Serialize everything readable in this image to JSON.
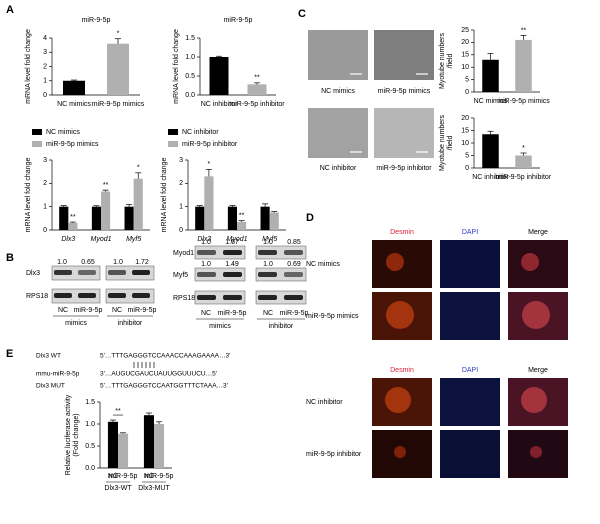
{
  "panels": [
    "A",
    "B",
    "C",
    "D",
    "E"
  ],
  "chart_data": [
    {
      "type": "bar",
      "title": "miR-9-5p",
      "y_label": [
        "mRNA level fold change"
      ],
      "categories": [
        "NC mimics",
        "miR-9-5p mimics"
      ],
      "values": [
        1.0,
        3.6
      ],
      "errors": [
        0.05,
        0.35
      ],
      "colors": [
        "#000000",
        "#b0b0b0"
      ],
      "annotations": [
        null,
        "*"
      ],
      "ylim": [
        0,
        4
      ],
      "yticks": [
        0,
        1,
        2,
        3,
        4
      ]
    },
    {
      "type": "bar",
      "title": "miR-9-5p",
      "y_label": [
        "mRNA level fold change"
      ],
      "categories": [
        "NC inhibitor",
        "miR-9-5p inhibitor"
      ],
      "values": [
        1.0,
        0.28
      ],
      "errors": [
        0.02,
        0.04
      ],
      "colors": [
        "#000000",
        "#b0b0b0"
      ],
      "annotations": [
        null,
        "**"
      ],
      "ylim": [
        0,
        1.5
      ],
      "yticks": [
        {
          "value": 0,
          "label": "0.0"
        },
        0.5,
        {
          "value": 1,
          "label": "1.0"
        },
        1.5
      ]
    },
    {
      "type": "bar",
      "y_label": [
        "mRNA level fold change"
      ],
      "categories": [
        "Dlx3",
        "Myod1",
        "Myf5"
      ],
      "legend": "top",
      "series": [
        {
          "name": "NC mimics",
          "color": "#000000",
          "values": [
            1.0,
            1.0,
            1.0
          ],
          "errors": [
            0.05,
            0.04,
            0.1
          ],
          "annotations": [
            null,
            null,
            null
          ]
        },
        {
          "name": "miR-9-5p mimics",
          "color": "#b0b0b0",
          "values": [
            0.3,
            1.65,
            2.2
          ],
          "errors": [
            0.04,
            0.06,
            0.25
          ],
          "annotations": [
            "**",
            "**",
            "*"
          ]
        }
      ],
      "ylim": [
        0,
        3
      ],
      "yticks": [
        0,
        1,
        2,
        3
      ]
    },
    {
      "type": "bar",
      "y_label": [
        "mRNA level fold change"
      ],
      "categories": [
        "Dlx3",
        "Myod1",
        "Myf5"
      ],
      "legend": "top",
      "series": [
        {
          "name": "NC inhibitor",
          "color": "#000000",
          "values": [
            1.0,
            1.0,
            1.0
          ],
          "errors": [
            0.05,
            0.05,
            0.12
          ],
          "annotations": [
            null,
            null,
            null
          ]
        },
        {
          "name": "miR-9-5p inhibitor",
          "color": "#b0b0b0",
          "values": [
            2.3,
            0.35,
            0.75
          ],
          "errors": [
            0.3,
            0.05,
            0.04
          ],
          "annotations": [
            "*",
            "**",
            null
          ]
        }
      ],
      "ylim": [
        0,
        3
      ],
      "yticks": [
        0,
        1,
        2,
        3
      ]
    },
    {
      "type": "bar",
      "y_label": [
        "Myotube numbers",
        "/field"
      ],
      "categories": [
        "NC mimics",
        "miR-9-5p mimics"
      ],
      "values": [
        13,
        21
      ],
      "errors": [
        2.5,
        1.8
      ],
      "colors": [
        "#000000",
        "#b0b0b0"
      ],
      "annotations": [
        null,
        "**"
      ],
      "ylim": [
        0,
        25
      ],
      "yticks": [
        0,
        5,
        10,
        15,
        20,
        25
      ]
    },
    {
      "type": "bar",
      "y_label": [
        "Myotube numbers",
        "/field"
      ],
      "categories": [
        "NC inhibitor",
        "miR-9-5p inhibitor"
      ],
      "values": [
        13.5,
        5
      ],
      "errors": [
        1.2,
        1.0
      ],
      "colors": [
        "#000000",
        "#b0b0b0"
      ],
      "annotations": [
        null,
        "*"
      ],
      "ylim": [
        0,
        20
      ],
      "yticks": [
        0,
        5,
        10,
        15,
        20
      ]
    },
    {
      "type": "bar",
      "y_label": [
        "Relative luciferase activity",
        "(Fold change)"
      ],
      "categories": [
        "Dlx3-WT",
        "Dlx3-MUT"
      ],
      "legend": "under-bars",
      "series": [
        {
          "name": "NC",
          "color": "#000000",
          "values": [
            1.05,
            1.2
          ],
          "errors": [
            0.04,
            0.05
          ],
          "annotations": [
            "**",
            null
          ]
        },
        {
          "name": "miR-9-5p",
          "color": "#b0b0b0",
          "values": [
            0.78,
            1.0
          ],
          "errors": [
            0.02,
            0.05
          ],
          "annotations": [
            null,
            null
          ]
        }
      ],
      "ylim": [
        0,
        1.5
      ],
      "yticks": [
        {
          "value": 0,
          "label": "0.0"
        },
        0.5,
        {
          "value": 1,
          "label": "1.0"
        },
        1.5
      ]
    }
  ],
  "blots": {
    "left": {
      "rows": [
        "Dlx3",
        "RPS18"
      ],
      "ratios": [
        [
          "1.0",
          "0.65"
        ],
        [
          "1.0",
          "1.72"
        ]
      ],
      "lanes": [
        "NC",
        "miR-9-5p"
      ],
      "groups": [
        "mimics",
        "inhibitor"
      ]
    },
    "right": {
      "rows": [
        "Myod1",
        "Myf5",
        "RPS18"
      ],
      "ratios": [
        [
          [
            "1.0",
            "1.67"
          ],
          [
            "1.0",
            "1.49"
          ]
        ],
        [
          [
            "1.0",
            "0.85"
          ],
          [
            "1.0",
            "0.69"
          ]
        ]
      ],
      "lanes": [
        "NC",
        "miR-9-5p"
      ],
      "groups": [
        "mimics",
        "inhibitor"
      ]
    }
  },
  "micrographs": [
    "NC mimics",
    "miR-9-5p mimics",
    "NC inhibitor",
    "miR-9-5p inhibitor"
  ],
  "fluorescence": {
    "channels": [
      "Desmin",
      "DAPI",
      "Merge"
    ],
    "rows": [
      "NC mimics",
      "miR-9-5p mimics",
      "NC inhibitor",
      "miR-9-5p inhibitor"
    ]
  },
  "sequences": [
    {
      "label": "Dlx3 WT",
      "seq": "5'…TTTGAGGGTCCAAACCAAAGAAAA…3'"
    },
    {
      "label": "mmu-miR-9-5p",
      "seq": "3'…AUGUCGAUCUAUUGGUUUCU…5'"
    },
    {
      "label": "Dlx3 MUT",
      "seq": "5'…TTTGAGGGTCCAATGGTTTCTAAA…3'"
    }
  ]
}
